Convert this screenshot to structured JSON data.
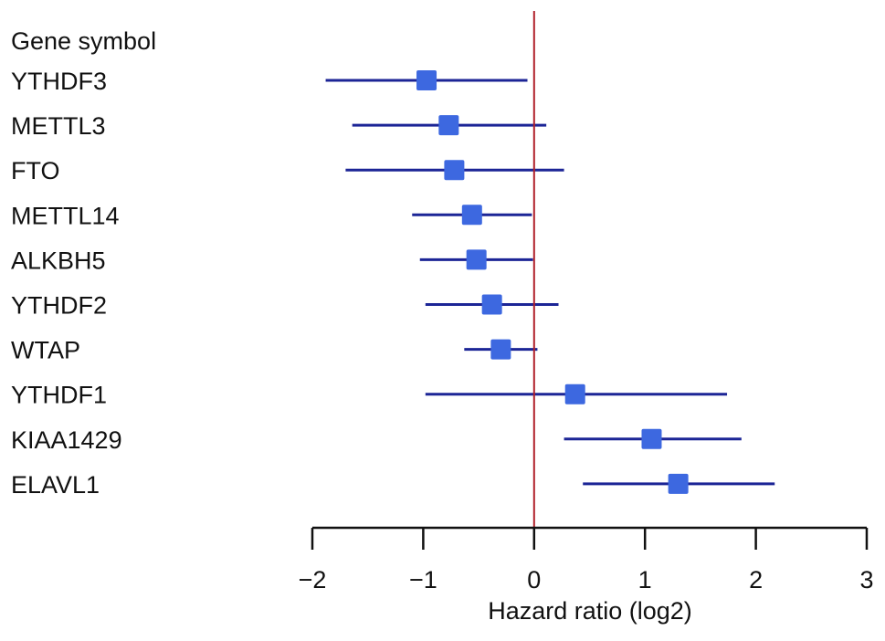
{
  "chart_data": {
    "type": "forest",
    "row_header": "Gene symbol",
    "xlabel": "Hazard ratio (log2)",
    "xlim": [
      -2,
      3
    ],
    "xticks": [
      -2,
      -1,
      0,
      1,
      2,
      3
    ],
    "xtick_labels": [
      "−2",
      "−1",
      "0",
      "1",
      "2",
      "3"
    ],
    "reference_line": 0,
    "grid": false,
    "colors": {
      "ci_line": "#1c2596",
      "point": "#3d68e0",
      "reference": "#b0202a",
      "axis": "#111111"
    },
    "series": [
      {
        "gene": "YTHDF3",
        "estimate": -0.97,
        "lower": -1.88,
        "upper": -0.06
      },
      {
        "gene": "METTL3",
        "estimate": -0.77,
        "lower": -1.64,
        "upper": 0.11
      },
      {
        "gene": "FTO",
        "estimate": -0.72,
        "lower": -1.7,
        "upper": 0.27
      },
      {
        "gene": "METTL14",
        "estimate": -0.56,
        "lower": -1.1,
        "upper": -0.02
      },
      {
        "gene": "ALKBH5",
        "estimate": -0.52,
        "lower": -1.03,
        "upper": -0.01
      },
      {
        "gene": "YTHDF2",
        "estimate": -0.38,
        "lower": -0.98,
        "upper": 0.22
      },
      {
        "gene": "WTAP",
        "estimate": -0.3,
        "lower": -0.63,
        "upper": 0.03
      },
      {
        "gene": "YTHDF1",
        "estimate": 0.37,
        "lower": -0.98,
        "upper": 1.74
      },
      {
        "gene": "KIAA1429",
        "estimate": 1.06,
        "lower": 0.27,
        "upper": 1.87
      },
      {
        "gene": "ELAVL1",
        "estimate": 1.3,
        "lower": 0.44,
        "upper": 2.17
      }
    ]
  }
}
